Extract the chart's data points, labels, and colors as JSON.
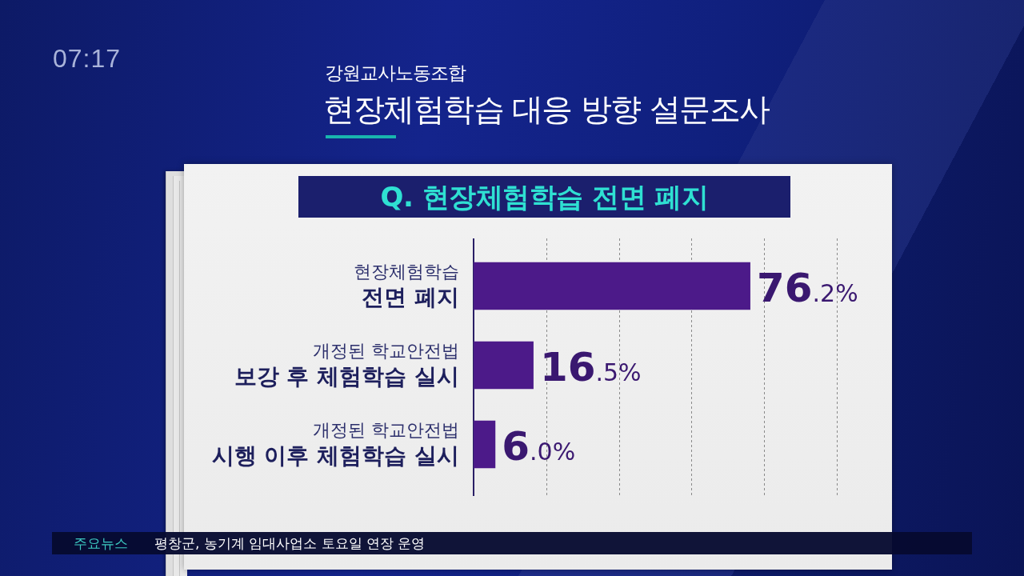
{
  "chart_data": {
    "type": "bar",
    "orientation": "horizontal",
    "title": "현장체험학습 대응 방향 설문조사",
    "subtitle": "Q. 현장체험학습 전면 폐지",
    "annotations": [
      "강원교사노동조합",
      "07:17",
      "주요뉴스",
      "평창군, 농기계 임대사업소 토요일 연장 운영"
    ],
    "categories": [
      "현장체험학습\n전면 폐지",
      "개정된 학교안전법\n보강 후 체험학습 실시",
      "개정된 학교안전법\n시행 이후 체험학습 실시"
    ],
    "values": [
      76.2,
      16.5,
      6.0
    ],
    "value_labels": [
      "76.2%",
      "16.5%",
      "6.0%"
    ],
    "color": "#4c1a89",
    "xlim": [
      0,
      100
    ],
    "xticks": [
      {
        "value": 20,
        "label": null
      },
      {
        "value": 40,
        "label": null
      },
      {
        "value": 60,
        "label": null
      },
      {
        "value": 80,
        "label": null
      },
      {
        "value": 100,
        "label": null
      }
    ],
    "grid": "x",
    "tick_labels": "y"
  }
}
